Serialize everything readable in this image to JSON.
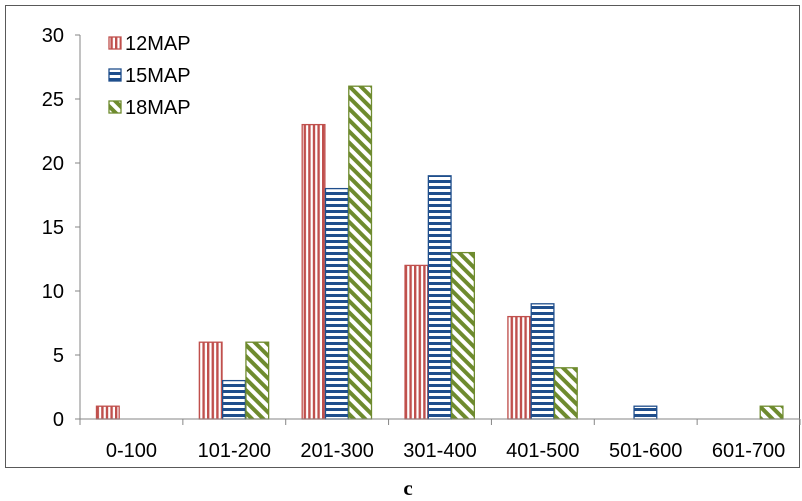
{
  "caption": "c",
  "chart_data": {
    "type": "bar",
    "categories": [
      "0-100",
      "101-200",
      "201-300",
      "301-400",
      "401-500",
      "501-600",
      "601-700"
    ],
    "series": [
      {
        "name": "12MAP",
        "values": [
          1,
          6,
          23,
          12,
          8,
          0,
          0
        ],
        "color": "#C0504D",
        "pattern": "vertical-stripes"
      },
      {
        "name": "15MAP",
        "values": [
          0,
          3,
          18,
          19,
          9,
          1,
          0
        ],
        "color": "#1F4E8C",
        "pattern": "horizontal-stripes"
      },
      {
        "name": "18MAP",
        "values": [
          0,
          6,
          26,
          13,
          4,
          0,
          1
        ],
        "color": "#6E8B2E",
        "pattern": "diagonal-stripes"
      }
    ],
    "ylim": [
      0,
      30
    ],
    "yticks": [
      0,
      5,
      10,
      15,
      20,
      25,
      30
    ],
    "grid": false,
    "legend": "top-left"
  }
}
